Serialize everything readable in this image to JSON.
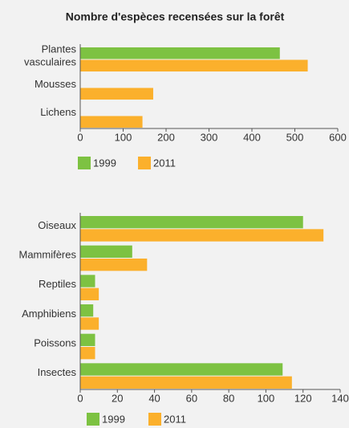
{
  "chart_data": [
    {
      "type": "barh",
      "title": "Nombre d'espèces recensées sur la forêt",
      "categories": [
        "Plantes\nvasculaires",
        "Mousses",
        "Lichens"
      ],
      "series": [
        {
          "name": "1999",
          "color": "#7dc242",
          "values": [
            465,
            null,
            null
          ]
        },
        {
          "name": "2011",
          "color": "#fbb02c",
          "values": [
            530,
            170,
            145
          ]
        }
      ],
      "xlim": [
        0,
        600
      ],
      "xticks": [
        0,
        100,
        200,
        300,
        400,
        500,
        600
      ]
    },
    {
      "type": "barh",
      "categories": [
        "Oiseaux",
        "Mammifères",
        "Reptiles",
        "Amphibiens",
        "Poissons",
        "Insectes"
      ],
      "series": [
        {
          "name": "1999",
          "color": "#7dc242",
          "values": [
            120,
            28,
            8,
            7,
            8,
            109
          ]
        },
        {
          "name": "2011",
          "color": "#fbb02c",
          "values": [
            131,
            36,
            10,
            10,
            8,
            114
          ]
        }
      ],
      "xlim": [
        0,
        140
      ],
      "xticks": [
        0,
        20,
        40,
        60,
        80,
        100,
        120,
        140
      ]
    }
  ]
}
